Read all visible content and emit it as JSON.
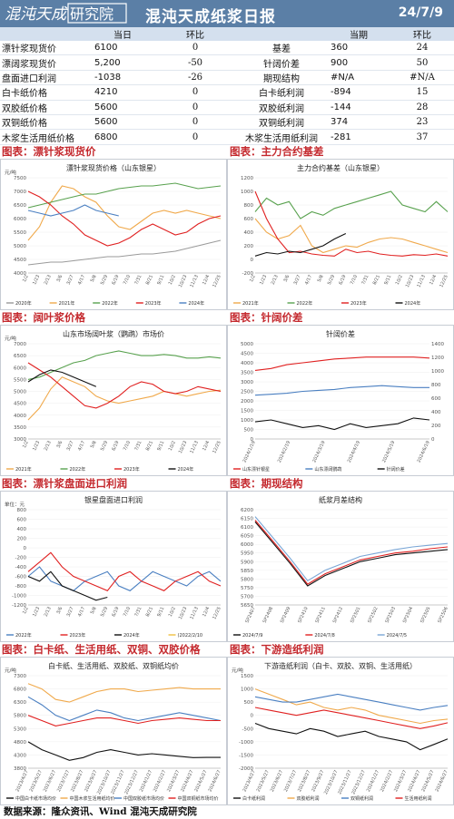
{
  "header": {
    "logo_text": "混沌天成研究院",
    "title": "混沌天成纸浆日报",
    "date": "24/7/9"
  },
  "summary": {
    "headers": {
      "current": "当日",
      "change": "环比",
      "period": "当期",
      "change2": "环比"
    },
    "rows": [
      {
        "l_label": "漂针浆现货价",
        "l_value": "6100",
        "l_change": "0",
        "r_label": "基差",
        "r_value": "360",
        "r_change": "24"
      },
      {
        "l_label": "漂阔浆现货价",
        "l_value": "5,200",
        "l_change": "-50",
        "r_label": "针阔价差",
        "r_value": "900",
        "r_change": "50"
      },
      {
        "l_label": "盘面进口利润",
        "l_value": "-1038",
        "l_change": "-26",
        "r_label": "期现结构",
        "r_value": "#N/A",
        "r_change": "#N/A"
      },
      {
        "l_label": "白卡纸价格",
        "l_value": "4210",
        "l_change": "0",
        "r_label": "白卡纸利润",
        "r_value": "-894",
        "r_change": "15"
      },
      {
        "l_label": "双胶纸价格",
        "l_value": "5600",
        "l_change": "0",
        "r_label": "双胶纸利润",
        "r_value": "-144",
        "r_change": "28"
      },
      {
        "l_label": "双铜纸价格",
        "l_value": "5600",
        "l_change": "0",
        "r_label": "双铜纸利润",
        "r_value": "374",
        "r_change": "23"
      },
      {
        "l_label": "木浆生活用纸价格",
        "l_value": "6800",
        "l_change": "0",
        "r_label": "木浆生活用纸利润",
        "r_value": "-281",
        "r_change": "37"
      }
    ]
  },
  "sections": [
    "图表：漂针浆现货价",
    "图表：主力合约基差",
    "图表：阔叶浆价格",
    "图表：针阔价差",
    "图表：漂针浆盘面进口利润",
    "图表：期现结构",
    "图表：白卡纸、生活用纸、双铜、双胶价格",
    "图表：下游造纸利润"
  ],
  "source": "数据来源：隆众资讯、Wind   混沌天成研究院",
  "colors": {
    "header_bg": "#5b7fa6",
    "section_text": "#c4282d",
    "table_head_bg": "#d4e0ee"
  },
  "chart_data": [
    {
      "type": "line",
      "title": "漂针浆现货价格（山东银星）",
      "unit": "元/吨",
      "ylim": [
        4000,
        7500
      ],
      "yticks": [
        "7500",
        "7000",
        "6500",
        "6000",
        "5500",
        "5000",
        "4500",
        "4000"
      ],
      "xticks": [
        "1/2",
        "1/23",
        "2/13",
        "3/6",
        "3/27",
        "4/17",
        "5/8",
        "5/29",
        "6/19",
        "7/10",
        "7/31",
        "8/21",
        "9/11",
        "10/2",
        "10/23",
        "11/13",
        "12/4",
        "12/25"
      ],
      "legend": "bottom",
      "series": [
        {
          "name": "2020年",
          "color": "#9a9a9a",
          "values": [
            4300,
            4350,
            4400,
            4400,
            4450,
            4500,
            4550,
            4600,
            4600,
            4650,
            4700,
            4700,
            4750,
            4800,
            4900,
            5000,
            5100,
            5200
          ]
        },
        {
          "name": "2021年",
          "color": "#f0a94b",
          "values": [
            5200,
            5700,
            6600,
            7200,
            7100,
            6800,
            6600,
            6100,
            5700,
            5600,
            5900,
            6200,
            6300,
            6200,
            6300,
            6200,
            6100,
            6000
          ]
        },
        {
          "name": "2022年",
          "color": "#58a14e",
          "values": [
            6400,
            6500,
            6600,
            6700,
            6800,
            6900,
            6900,
            7000,
            7100,
            7150,
            7200,
            7200,
            7250,
            7300,
            7200,
            7100,
            7150,
            7200
          ]
        },
        {
          "name": "2023年",
          "color": "#e02020",
          "values": [
            7000,
            6800,
            6500,
            6100,
            5800,
            5400,
            5200,
            5000,
            5100,
            5300,
            5600,
            5800,
            5600,
            5400,
            5500,
            5800,
            6000,
            6100
          ]
        },
        {
          "name": "2024年",
          "color": "#4a7fc1",
          "values": [
            6300,
            6200,
            6100,
            6200,
            6300,
            6500,
            6300,
            6200,
            6100,
            null,
            null,
            null,
            null,
            null,
            null,
            null,
            null,
            null
          ]
        }
      ]
    },
    {
      "type": "line",
      "title": "主力合约基差（山东银星）",
      "ylim": [
        -200,
        1200
      ],
      "yticks": [
        "1200",
        "1000",
        "800",
        "600",
        "400",
        "200",
        "0",
        "-200"
      ],
      "xticks": [
        "1/2",
        "1/23",
        "2/13",
        "3/6",
        "3/27",
        "4/17",
        "5/8",
        "5/29",
        "6/19",
        "7/10",
        "7/31",
        "8/21",
        "9/11",
        "10/2",
        "10/23",
        "11/13",
        "12/4",
        "12/25"
      ],
      "legend": "bottom",
      "series": [
        {
          "name": "2021年",
          "color": "#f0a94b",
          "values": [
            600,
            400,
            300,
            350,
            500,
            200,
            100,
            150,
            200,
            180,
            250,
            300,
            320,
            300,
            250,
            200,
            150,
            100
          ]
        },
        {
          "name": "2022年",
          "color": "#58a14e",
          "values": [
            700,
            900,
            800,
            850,
            600,
            700,
            650,
            750,
            800,
            850,
            900,
            950,
            1000,
            800,
            750,
            700,
            850,
            700
          ]
        },
        {
          "name": "2023年",
          "color": "#e02020",
          "values": [
            1000,
            600,
            300,
            100,
            120,
            80,
            60,
            50,
            150,
            100,
            120,
            80,
            60,
            50,
            70,
            60,
            80,
            50
          ]
        },
        {
          "name": "2024年",
          "color": "#111111",
          "values": [
            50,
            100,
            80,
            120,
            100,
            150,
            200,
            300,
            380,
            null,
            null,
            null,
            null,
            null,
            null,
            null,
            null,
            null
          ]
        }
      ]
    },
    {
      "type": "line",
      "title": "山东市场阔叶浆（鹦鹉）市场价",
      "unit": "元/吨",
      "ylim": [
        3000,
        7000
      ],
      "yticks": [
        "7000",
        "6500",
        "6000",
        "5500",
        "5000",
        "4500",
        "4000",
        "3500",
        "3000"
      ],
      "xticks": [
        "1/2",
        "1/23",
        "2/13",
        "3/6",
        "3/27",
        "4/17",
        "5/8",
        "5/29",
        "6/19",
        "7/10",
        "7/31",
        "8/21",
        "9/11",
        "10/2",
        "10/23",
        "11/13",
        "12/4",
        "12/25"
      ],
      "legend": "bottom",
      "series": [
        {
          "name": "2021年",
          "color": "#f0a94b",
          "values": [
            3800,
            4300,
            5100,
            5600,
            5400,
            5200,
            4800,
            4600,
            4500,
            4600,
            4700,
            4800,
            5000,
            4900,
            4800,
            4900,
            5000,
            5050
          ]
        },
        {
          "name": "2022年",
          "color": "#58a14e",
          "values": [
            5500,
            5600,
            5800,
            6000,
            6200,
            6300,
            6500,
            6600,
            6700,
            6600,
            6500,
            6500,
            6550,
            6500,
            6400,
            6400,
            6450,
            6400
          ]
        },
        {
          "name": "2023年",
          "color": "#e02020",
          "values": [
            6200,
            5900,
            5600,
            5200,
            4800,
            4400,
            4300,
            4500,
            4800,
            5200,
            5400,
            5300,
            5000,
            4900,
            5000,
            5200,
            5100,
            5000
          ]
        },
        {
          "name": "2024年",
          "color": "#111111",
          "values": [
            5400,
            5700,
            5900,
            5800,
            5600,
            5400,
            5200,
            null,
            null,
            null,
            null,
            null,
            null,
            null,
            null,
            null,
            null,
            null
          ]
        }
      ]
    },
    {
      "type": "line",
      "title": "针阔价差",
      "ylim": [
        0,
        5000
      ],
      "yticks": [
        "5000",
        "4500",
        "4000",
        "3500",
        "3000",
        "2500",
        "2000",
        "1500",
        "1000",
        "500",
        "0"
      ],
      "y2ticks": [
        "1400",
        "1200",
        "1000",
        "800",
        "600",
        "400",
        "200",
        "0"
      ],
      "xticks": [
        "2024/1/19",
        "2024/2/19",
        "2024/3/19",
        "2024/4/19",
        "2024/5/19",
        "2024/6/19"
      ],
      "legend": "bottom",
      "series": [
        {
          "name": "山东漂针银星",
          "color": "#e02020",
          "values": [
            3600,
            3700,
            3900,
            4000,
            4100,
            4200,
            4250,
            4300,
            4300,
            4300,
            4300,
            4250
          ]
        },
        {
          "name": "山东漂阔鹦鹉",
          "color": "#4a7fc1",
          "values": [
            2300,
            2350,
            2400,
            2500,
            2550,
            2600,
            2700,
            2750,
            2800,
            2750,
            2700,
            2700
          ]
        },
        {
          "name": "针阔价差",
          "color": "#111111",
          "values": [
            900,
            1000,
            800,
            600,
            700,
            500,
            800,
            600,
            700,
            800,
            1100,
            1000
          ]
        }
      ]
    },
    {
      "type": "line",
      "title": "银星盘面进口利润",
      "unit": "单位：元",
      "ylim": [
        -1200,
        800
      ],
      "yticks": [
        "800",
        "600",
        "400",
        "200",
        "0",
        "-200",
        "-400",
        "-600",
        "-800",
        "-1000",
        "-1200"
      ],
      "xticks": [
        "1/2",
        "1/23",
        "2/13",
        "3/6",
        "3/27",
        "4/17",
        "5/8",
        "5/29",
        "6/19",
        "7/10",
        "7/31",
        "8/21",
        "9/11",
        "10/2",
        "10/23",
        "11/13",
        "12/4",
        "12/25"
      ],
      "legend": "bottom",
      "series": [
        {
          "name": "2022年",
          "color": "#4a7fc1",
          "values": [
            -600,
            -400,
            -700,
            -800,
            -900,
            -700,
            -600,
            -500,
            -800,
            -900,
            -700,
            -500,
            -600,
            -700,
            -800,
            -600,
            -500,
            -700
          ]
        },
        {
          "name": "2023年",
          "color": "#e02020",
          "values": [
            -500,
            -300,
            -100,
            -400,
            -600,
            -700,
            -800,
            -900,
            -600,
            -500,
            -700,
            -800,
            -900,
            -700,
            -600,
            -500,
            -700,
            -800
          ]
        },
        {
          "name": "2024年",
          "color": "#111111",
          "values": [
            -600,
            -700,
            -500,
            -800,
            -900,
            -1000,
            -1100,
            -1038,
            null,
            null,
            null,
            null,
            null,
            null,
            null,
            null,
            null,
            null
          ]
        },
        {
          "name": "(2022/2/10",
          "color": "#f0c040",
          "values": []
        }
      ]
    },
    {
      "type": "line",
      "title": "纸浆月差结构",
      "ylim": [
        5650,
        6200
      ],
      "yticks": [
        "6200",
        "6150",
        "6100",
        "6050",
        "6000",
        "5950",
        "5900",
        "5850",
        "5800",
        "5750",
        "5700",
        "5650"
      ],
      "xticks": [
        "SP2407",
        "SP2408",
        "SP2409",
        "SP2410",
        "SP2411",
        "SP2412",
        "SP2501",
        "SP2502",
        "SP2503",
        "SP2504",
        "SP2505",
        "SP2506"
      ],
      "legend": "bottom",
      "series": [
        {
          "name": "2024/7/9",
          "color": "#111111",
          "values": [
            6130,
            6010,
            5890,
            5760,
            5820,
            5860,
            5900,
            5920,
            5940,
            5950,
            5960,
            5970
          ]
        },
        {
          "name": "2024/7/8",
          "color": "#e02020",
          "values": [
            6140,
            6020,
            5900,
            5770,
            5830,
            5870,
            5910,
            5930,
            5950,
            5960,
            5975,
            5985
          ]
        },
        {
          "name": "2024/7/5",
          "color": "#7aa6d6",
          "values": [
            6160,
            6040,
            5920,
            5790,
            5850,
            5890,
            5930,
            5950,
            5970,
            5985,
            5995,
            6005
          ]
        }
      ]
    },
    {
      "type": "line",
      "title": "白卡纸、生活用纸、双胶纸、双铜纸均价",
      "unit": "元/吨",
      "ylim": [
        3800,
        7300
      ],
      "yticks": [
        "7300",
        "6800",
        "6300",
        "5800",
        "5300",
        "4800",
        "4300",
        "3800"
      ],
      "xticks": [
        "2023/4/27",
        "2023/5/27",
        "2023/6/27",
        "2023/7/27",
        "2023/8/27",
        "2023/9/27",
        "2023/10/27",
        "2023/11/27",
        "2023/12/27",
        "2024/1/27",
        "2024/2/27",
        "2024/3/27",
        "2024/4/27",
        "2024/5/27",
        "2024/6/27"
      ],
      "legend": "bottom",
      "series": [
        {
          "name": "中国白卡纸市场均价",
          "color": "#111111",
          "values": [
            4800,
            4500,
            4300,
            4100,
            4200,
            4400,
            4500,
            4400,
            4300,
            4350,
            4300,
            4250,
            4200,
            4210,
            4210
          ]
        },
        {
          "name": "中国木浆生活用纸均价",
          "color": "#f0a94b",
          "values": [
            7000,
            6800,
            6400,
            6300,
            6500,
            6700,
            6800,
            6800,
            6700,
            6750,
            6800,
            6850,
            6800,
            6800,
            6800
          ]
        },
        {
          "name": "中国双胶纸市场均价",
          "color": "#4a7fc1",
          "values": [
            6500,
            6200,
            5800,
            5600,
            5800,
            6000,
            5900,
            5700,
            5600,
            5700,
            5800,
            5900,
            5800,
            5700,
            5600
          ]
        },
        {
          "name": "中国双铜纸市场均价",
          "color": "#e02020",
          "values": [
            5800,
            5600,
            5400,
            5500,
            5600,
            5700,
            5700,
            5600,
            5500,
            5600,
            5650,
            5700,
            5650,
            5600,
            5600
          ]
        }
      ]
    },
    {
      "type": "line",
      "title": "下游造纸利润（白卡、双胶、双铜、生活用纸）",
      "unit": "元/吨",
      "ylim": [
        -2000,
        1500
      ],
      "yticks": [
        "1500",
        "1000",
        "500",
        "0",
        "-500",
        "-1000",
        "-1500",
        "-2000"
      ],
      "xticks": [
        "2023/4/27",
        "2023/5/27",
        "2023/6/27",
        "2023/7/27",
        "2023/8/27",
        "2023/9/27",
        "2023/10/27",
        "2023/11/27",
        "2023/12/27",
        "2024/1/27",
        "2024/2/27",
        "2024/3/27",
        "2024/4/27",
        "2024/5/27",
        "2024/6/27"
      ],
      "legend": "bottom",
      "series": [
        {
          "name": "白卡纸利润",
          "color": "#111111",
          "values": [
            -300,
            -500,
            -600,
            -700,
            -500,
            -600,
            -800,
            -700,
            -600,
            -800,
            -900,
            -1000,
            -1300,
            -1100,
            -894
          ]
        },
        {
          "name": "双胶纸利润",
          "color": "#f0a94b",
          "values": [
            1000,
            800,
            600,
            400,
            500,
            300,
            200,
            300,
            200,
            0,
            -100,
            -200,
            -300,
            -200,
            -144
          ]
        },
        {
          "name": "双铜纸利润",
          "color": "#4a7fc1",
          "values": [
            700,
            600,
            500,
            500,
            600,
            700,
            800,
            700,
            600,
            500,
            400,
            300,
            200,
            300,
            374
          ]
        },
        {
          "name": "生活用纸利润",
          "color": "#e02020",
          "values": [
            300,
            200,
            100,
            0,
            100,
            200,
            100,
            0,
            -100,
            -200,
            -300,
            -400,
            -500,
            -400,
            -281
          ]
        }
      ]
    }
  ]
}
